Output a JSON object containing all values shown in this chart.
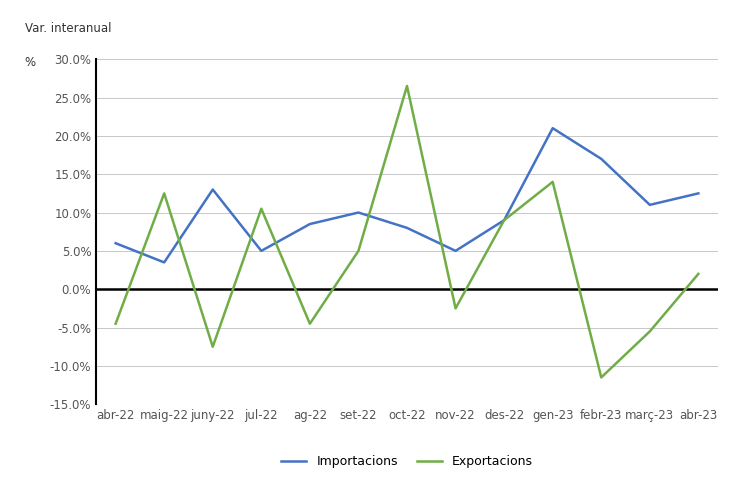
{
  "categories": [
    "abr-22",
    "maig-22",
    "juny-22",
    "jul-22",
    "ag-22",
    "set-22",
    "oct-22",
    "nov-22",
    "des-22",
    "gen-23",
    "febr-23",
    "març-23",
    "abr-23"
  ],
  "importacions": [
    6.0,
    3.5,
    13.0,
    5.0,
    8.5,
    10.0,
    8.0,
    5.0,
    9.0,
    21.0,
    17.0,
    11.0,
    12.5
  ],
  "exportacions": [
    -4.5,
    12.5,
    -7.5,
    10.5,
    -4.5,
    5.0,
    26.5,
    -2.5,
    9.0,
    14.0,
    -11.5,
    -5.5,
    2.0
  ],
  "importacions_color": "#4472C4",
  "exportacions_color": "#70AD47",
  "ylabel": "Var. interanual",
  "ylabel2": "%",
  "ylim": [
    -15,
    30
  ],
  "yticks": [
    -15,
    -10,
    -5,
    0,
    5,
    10,
    15,
    20,
    25,
    30
  ],
  "background_color": "#ffffff",
  "grid_color": "#c8c8c8",
  "legend_importacions": "Importacions",
  "legend_exportacions": "Exportacions",
  "zero_line_color": "#000000",
  "spine_color": "#000000",
  "line_width": 1.8,
  "tick_color": "#555555"
}
